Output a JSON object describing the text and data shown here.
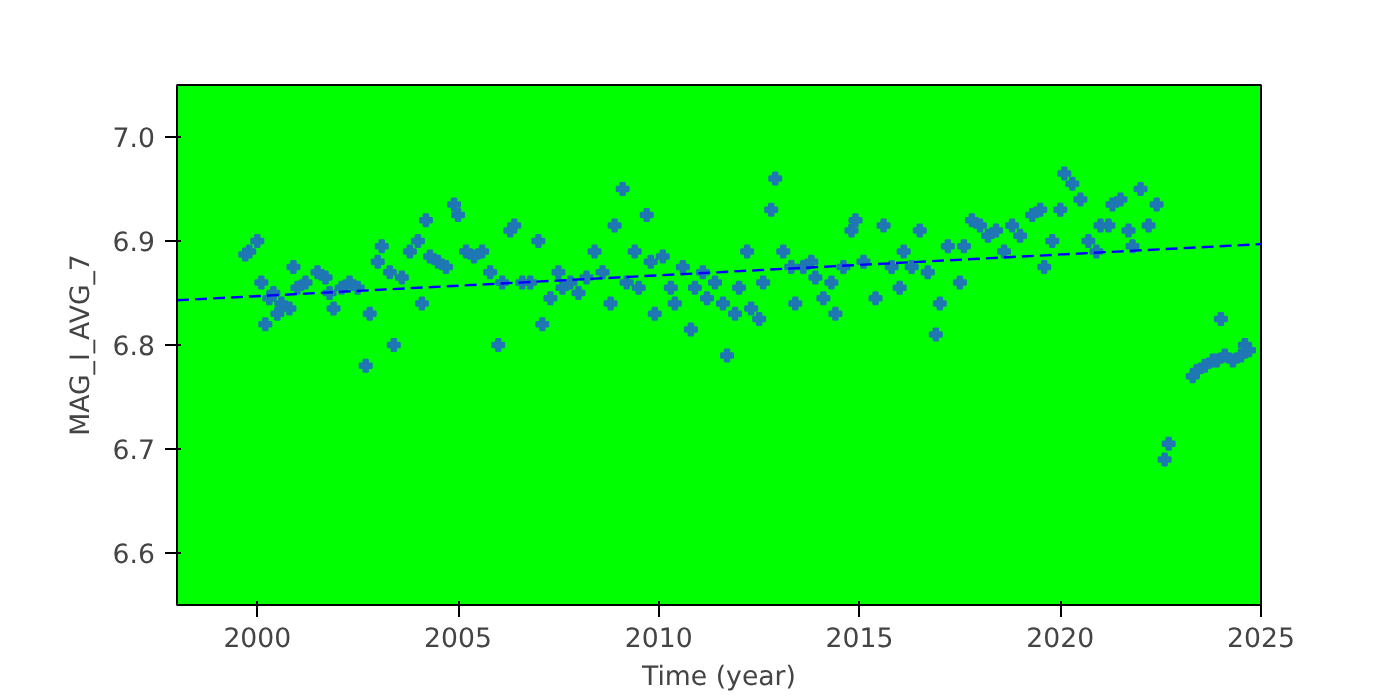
{
  "chart_data": {
    "type": "scatter",
    "xlabel": "Time (year)",
    "ylabel": "MAG_I_AVG_7",
    "xlim": [
      1998,
      2025
    ],
    "ylim": [
      6.55,
      7.05
    ],
    "xticks": [
      2000,
      2005,
      2010,
      2015,
      2020,
      2025
    ],
    "yticks": [
      6.6,
      6.7,
      6.8,
      6.9,
      {
        "value": 7.0,
        "label": "7.0"
      }
    ],
    "grid": false,
    "series": [
      {
        "marker": "cross",
        "color": "#1f77b4",
        "x": [
          1999.7,
          1999.8,
          2000.0,
          2000.1,
          2000.2,
          2000.3,
          2000.4,
          2000.5,
          2000.6,
          2000.8,
          2000.9,
          2001.0,
          2001.2,
          2001.5,
          2001.7,
          2001.8,
          2001.9,
          2002.1,
          2002.3,
          2002.5,
          2002.7,
          2002.8,
          2003.0,
          2003.1,
          2003.3,
          2003.4,
          2003.6,
          2003.8,
          2004.0,
          2004.1,
          2004.2,
          2004.3,
          2004.5,
          2004.7,
          2004.9,
          2005.0,
          2005.2,
          2005.4,
          2005.6,
          2005.8,
          2006.0,
          2006.1,
          2006.3,
          2006.4,
          2006.6,
          2006.8,
          2007.0,
          2007.1,
          2007.3,
          2007.5,
          2007.6,
          2007.8,
          2008.0,
          2008.2,
          2008.4,
          2008.6,
          2008.8,
          2008.9,
          2009.1,
          2009.2,
          2009.4,
          2009.5,
          2009.7,
          2009.8,
          2009.9,
          2010.1,
          2010.3,
          2010.4,
          2010.6,
          2010.8,
          2010.9,
          2011.1,
          2011.2,
          2011.4,
          2011.6,
          2011.7,
          2011.9,
          2012.0,
          2012.2,
          2012.3,
          2012.5,
          2012.6,
          2012.8,
          2012.9,
          2013.1,
          2013.3,
          2013.4,
          2013.6,
          2013.8,
          2013.9,
          2014.1,
          2014.3,
          2014.4,
          2014.6,
          2014.8,
          2014.9,
          2015.1,
          2015.4,
          2015.6,
          2015.8,
          2016.0,
          2016.1,
          2016.3,
          2016.5,
          2016.7,
          2016.9,
          2017.0,
          2017.2,
          2017.5,
          2017.6,
          2017.8,
          2018.0,
          2018.2,
          2018.4,
          2018.6,
          2018.8,
          2019.0,
          2019.3,
          2019.5,
          2019.6,
          2019.8,
          2020.0,
          2020.1,
          2020.3,
          2020.5,
          2020.7,
          2020.9,
          2021.0,
          2021.2,
          2021.3,
          2021.5,
          2021.7,
          2021.8,
          2022.0,
          2022.2,
          2022.4,
          2022.6,
          2022.7,
          2023.3,
          2023.4,
          2023.6,
          2023.8,
          2023.9,
          2024.0,
          2024.1,
          2024.3,
          2024.5,
          2024.6,
          2024.7
        ],
        "values": [
          6.887,
          6.89,
          6.9,
          6.86,
          6.82,
          6.845,
          6.85,
          6.83,
          6.84,
          6.835,
          6.875,
          6.855,
          6.86,
          6.87,
          6.865,
          6.85,
          6.835,
          6.855,
          6.86,
          6.855,
          6.78,
          6.83,
          6.88,
          6.895,
          6.87,
          6.8,
          6.865,
          6.89,
          6.9,
          6.84,
          6.92,
          6.885,
          6.88,
          6.875,
          6.935,
          6.925,
          6.89,
          6.885,
          6.89,
          6.87,
          6.8,
          6.86,
          6.91,
          6.915,
          6.86,
          6.86,
          6.9,
          6.82,
          6.845,
          6.87,
          6.855,
          6.86,
          6.85,
          6.865,
          6.89,
          6.87,
          6.84,
          6.915,
          6.95,
          6.86,
          6.89,
          6.855,
          6.925,
          6.88,
          6.83,
          6.885,
          6.855,
          6.84,
          6.875,
          6.815,
          6.855,
          6.87,
          6.845,
          6.86,
          6.84,
          6.79,
          6.83,
          6.855,
          6.89,
          6.835,
          6.825,
          6.86,
          6.93,
          6.96,
          6.89,
          6.875,
          6.84,
          6.875,
          6.88,
          6.865,
          6.845,
          6.86,
          6.83,
          6.875,
          6.91,
          6.92,
          6.88,
          6.845,
          6.915,
          6.875,
          6.855,
          6.89,
          6.875,
          6.91,
          6.87,
          6.81,
          6.84,
          6.895,
          6.86,
          6.895,
          6.92,
          6.915,
          6.905,
          6.91,
          6.89,
          6.915,
          6.905,
          6.925,
          6.93,
          6.875,
          6.9,
          6.93,
          6.965,
          6.955,
          6.94,
          6.9,
          6.89,
          6.915,
          6.915,
          6.935,
          6.94,
          6.91,
          6.895,
          6.95,
          6.915,
          6.935,
          6.69,
          6.705,
          6.77,
          6.775,
          6.78,
          6.785,
          6.785,
          6.825,
          6.79,
          6.785,
          6.79,
          6.8,
          6.795
        ]
      },
      {
        "type": "line",
        "marker": "none",
        "color": "#0000ff",
        "line_style": "dashed",
        "x": [
          1998,
          2025
        ],
        "values": [
          6.843,
          6.897
        ]
      }
    ]
  }
}
